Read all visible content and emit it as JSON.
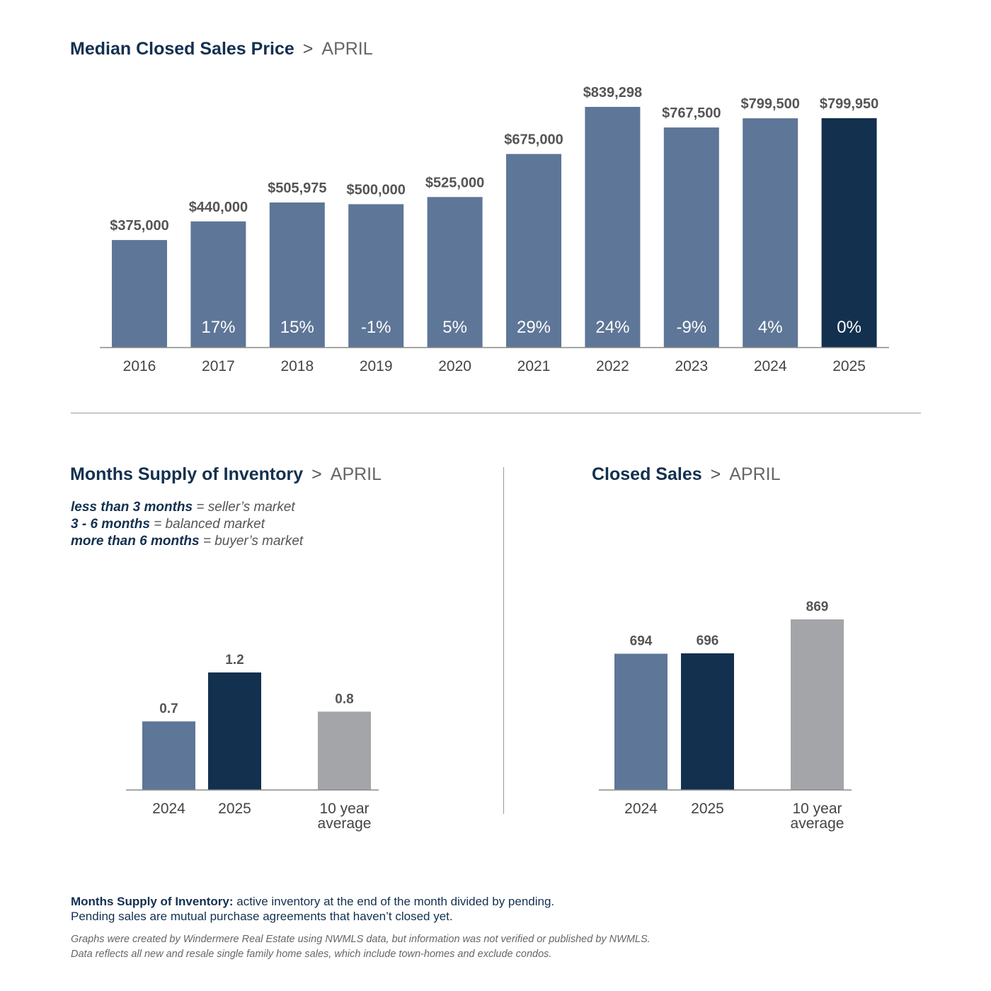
{
  "colors": {
    "navy": "#13304f",
    "steel": "#5e7697",
    "gray": "#a3a5a9",
    "axis": "#8a8a8a"
  },
  "header_sep": ">",
  "charts": {
    "price": {
      "title": "Median Closed Sales Price",
      "subtitle": "APRIL"
    },
    "supply": {
      "title": "Months Supply of Inventory",
      "subtitle": "APRIL",
      "legend": [
        {
          "key": "less than 3 months",
          "value": "= seller’s market"
        },
        {
          "key": "3 - 6 months",
          "value": "= balanced market"
        },
        {
          "key": "more than 6 months",
          "value": "= buyer’s market"
        }
      ]
    },
    "closed": {
      "title": "Closed Sales",
      "subtitle": "APRIL"
    }
  },
  "chart_data": [
    {
      "type": "bar",
      "title": "Median Closed Sales Price",
      "categories": [
        "2016",
        "2017",
        "2018",
        "2019",
        "2020",
        "2021",
        "2022",
        "2023",
        "2024",
        "2025"
      ],
      "values": [
        375000,
        440000,
        505975,
        500000,
        525000,
        675000,
        839298,
        767500,
        799500,
        799950
      ],
      "value_labels": [
        "$375,000",
        "$440,000",
        "$505,975",
        "$500,000",
        "$525,000",
        "$675,000",
        "$839,298",
        "$767,500",
        "$799,500",
        "$799,950"
      ],
      "change_labels": [
        "",
        "17%",
        "15%",
        "-1%",
        "5%",
        "29%",
        "24%",
        "-9%",
        "4%",
        "0%"
      ],
      "bar_colors": [
        "steel",
        "steel",
        "steel",
        "steel",
        "steel",
        "steel",
        "steel",
        "steel",
        "steel",
        "navy"
      ]
    },
    {
      "type": "bar",
      "title": "Months Supply of Inventory",
      "categories": [
        "2024",
        "2025",
        "10 year average"
      ],
      "values": [
        0.7,
        1.2,
        0.8
      ],
      "value_labels": [
        "0.7",
        "1.2",
        "0.8"
      ],
      "bar_colors": [
        "steel",
        "navy",
        "gray"
      ]
    },
    {
      "type": "bar",
      "title": "Closed Sales",
      "categories": [
        "2024",
        "2025",
        "10 year average"
      ],
      "values": [
        694,
        696,
        869
      ],
      "value_labels": [
        "694",
        "696",
        "869"
      ],
      "bar_colors": [
        "steel",
        "navy",
        "gray"
      ]
    }
  ],
  "footnote": {
    "term": "Months Supply of Inventory:",
    "definition": "active inventory at the end of the month divided by pending.",
    "line2": "Pending sales are mutual purchase agreements that haven’t closed yet."
  },
  "disclaimer": [
    "Graphs were created by Windermere Real Estate using NWMLS data, but information was not verified or published by NWMLS.",
    "Data reflects all new and resale single family home sales, which include town-homes and exclude condos."
  ]
}
